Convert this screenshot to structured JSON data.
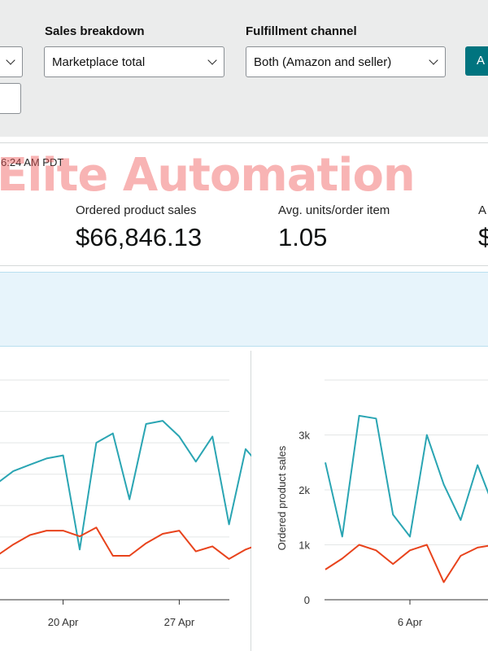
{
  "filters": {
    "sales_breakdown": {
      "label": "Sales breakdown",
      "value": "Marketplace total"
    },
    "fulfillment_channel": {
      "label": "Fulfillment channel",
      "value": "Both (Amazon and seller)"
    },
    "apply_label": "A"
  },
  "stats": {
    "last_updated": "6:24 AM PDT",
    "watermark": "Elite Automation",
    "ordered_product_sales": {
      "label": "Ordered product sales",
      "value": "$66,846.13"
    },
    "avg_units_per_order_item": {
      "label": "Avg. units/order item",
      "value": "1.05"
    },
    "next_stat": {
      "label": "A",
      "value": "$"
    }
  },
  "colors": {
    "teal": "#2aa5b3",
    "orange": "#e8431c",
    "button": "#00747f"
  },
  "chart_data": [
    {
      "type": "line",
      "x_ticks": [
        "20 Apr",
        "27 Apr"
      ],
      "series": [
        {
          "values": [
            1850,
            2050,
            2150,
            2250,
            2300,
            800,
            2500,
            2650,
            1600,
            2800,
            2850,
            2600,
            2200,
            2600,
            1200,
            2400,
            2100
          ]
        },
        {
          "values": [
            700,
            880,
            1030,
            1100,
            1100,
            1010,
            1150,
            700,
            700,
            900,
            1050,
            1100,
            770,
            850,
            650,
            800,
            900
          ]
        }
      ]
    },
    {
      "type": "line",
      "title": "",
      "ylabel": "Ordered product sales",
      "y_ticks": [
        "0",
        "1k",
        "2k",
        "3k"
      ],
      "ylim": [
        0,
        4000
      ],
      "x_ticks": [
        "6 Apr"
      ],
      "series": [
        {
          "values": [
            2500,
            1150,
            3350,
            3300,
            1550,
            1150,
            3000,
            2100,
            1450,
            2450,
            1650
          ]
        },
        {
          "values": [
            550,
            750,
            1000,
            900,
            650,
            900,
            1000,
            320,
            800,
            950,
            1000
          ]
        }
      ]
    }
  ]
}
